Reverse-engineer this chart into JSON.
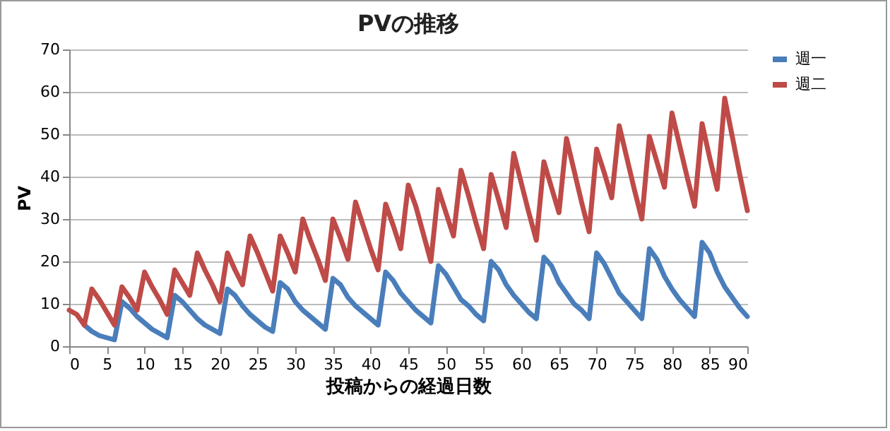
{
  "chart_data": {
    "type": "line",
    "title": "PVの推移",
    "xlabel": "投稿からの経過日数",
    "ylabel": "PV",
    "x": [
      0,
      1,
      2,
      3,
      4,
      5,
      6,
      7,
      8,
      9,
      10,
      11,
      12,
      13,
      14,
      15,
      16,
      17,
      18,
      19,
      20,
      21,
      22,
      23,
      24,
      25,
      26,
      27,
      28,
      29,
      30,
      31,
      32,
      33,
      34,
      35,
      36,
      37,
      38,
      39,
      40,
      41,
      42,
      43,
      44,
      45,
      46,
      47,
      48,
      49,
      50,
      51,
      52,
      53,
      54,
      55,
      56,
      57,
      58,
      59,
      60,
      61,
      62,
      63,
      64,
      65,
      66,
      67,
      68,
      69,
      70,
      71,
      72,
      73,
      74,
      75,
      76,
      77,
      78,
      79,
      80,
      81,
      82,
      83,
      84,
      85,
      86,
      87,
      88,
      89,
      90
    ],
    "series": [
      {
        "name": "週一",
        "color": "#4a7ebb",
        "values": [
          null,
          null,
          5,
          3.5,
          2.5,
          2,
          1.5,
          10.5,
          9,
          7,
          5.5,
          4,
          3,
          2,
          12,
          10.5,
          8.5,
          6.5,
          5,
          4,
          3,
          13.5,
          12,
          9.5,
          7.5,
          6,
          4.5,
          3.5,
          15,
          13.5,
          10.5,
          8.5,
          7,
          5.5,
          4,
          16,
          14.5,
          11.5,
          9.5,
          8,
          6.5,
          5,
          17.5,
          15.5,
          12.5,
          10.5,
          8.5,
          7,
          5.5,
          19,
          17,
          14,
          11,
          9.5,
          7.5,
          6,
          20,
          18,
          14.5,
          12,
          10,
          8,
          6.5,
          21,
          19,
          15,
          12.5,
          10,
          8.5,
          6.5,
          22,
          19.5,
          16,
          12.5,
          10.5,
          8.5,
          6.5,
          23,
          20.5,
          16.5,
          13.5,
          11,
          9,
          7,
          24.5,
          22,
          17.5,
          14,
          11.5,
          9,
          7
        ]
      },
      {
        "name": "週二",
        "color": "#be4b48",
        "values": [
          8.5,
          7.5,
          5,
          13.5,
          11,
          8,
          5,
          14,
          11.5,
          8.5,
          17.5,
          14,
          11,
          7.5,
          18,
          15,
          12,
          22,
          18,
          14.5,
          10.5,
          22,
          18,
          14.5,
          26,
          22,
          17.5,
          13,
          26,
          22,
          17.5,
          30,
          25,
          20.5,
          15.5,
          30,
          25.5,
          20.5,
          34,
          28.5,
          23,
          18,
          33.5,
          28.5,
          23,
          38,
          33,
          26.5,
          20,
          37,
          31.5,
          26,
          41.5,
          35.5,
          29,
          23,
          40.5,
          34.5,
          28,
          45.5,
          38.5,
          31.5,
          25,
          43.5,
          37.5,
          31.5,
          49,
          41.5,
          34,
          27,
          46.5,
          41,
          35,
          52,
          44.5,
          37,
          30,
          49.5,
          43.5,
          37.5,
          55,
          47.5,
          40,
          33,
          52.5,
          44.5,
          37,
          58.5,
          49.5,
          40.5,
          32
        ]
      }
    ],
    "xlim": [
      0,
      90
    ],
    "xticks": [
      0,
      5,
      10,
      15,
      20,
      25,
      30,
      35,
      40,
      45,
      50,
      55,
      60,
      65,
      70,
      75,
      80,
      85,
      90
    ],
    "ylim": [
      0,
      70
    ],
    "yticks": [
      0,
      10,
      20,
      30,
      40,
      50,
      60,
      70
    ],
    "grid": "y",
    "legend": "right",
    "marker": "none",
    "line_style": "solid"
  }
}
